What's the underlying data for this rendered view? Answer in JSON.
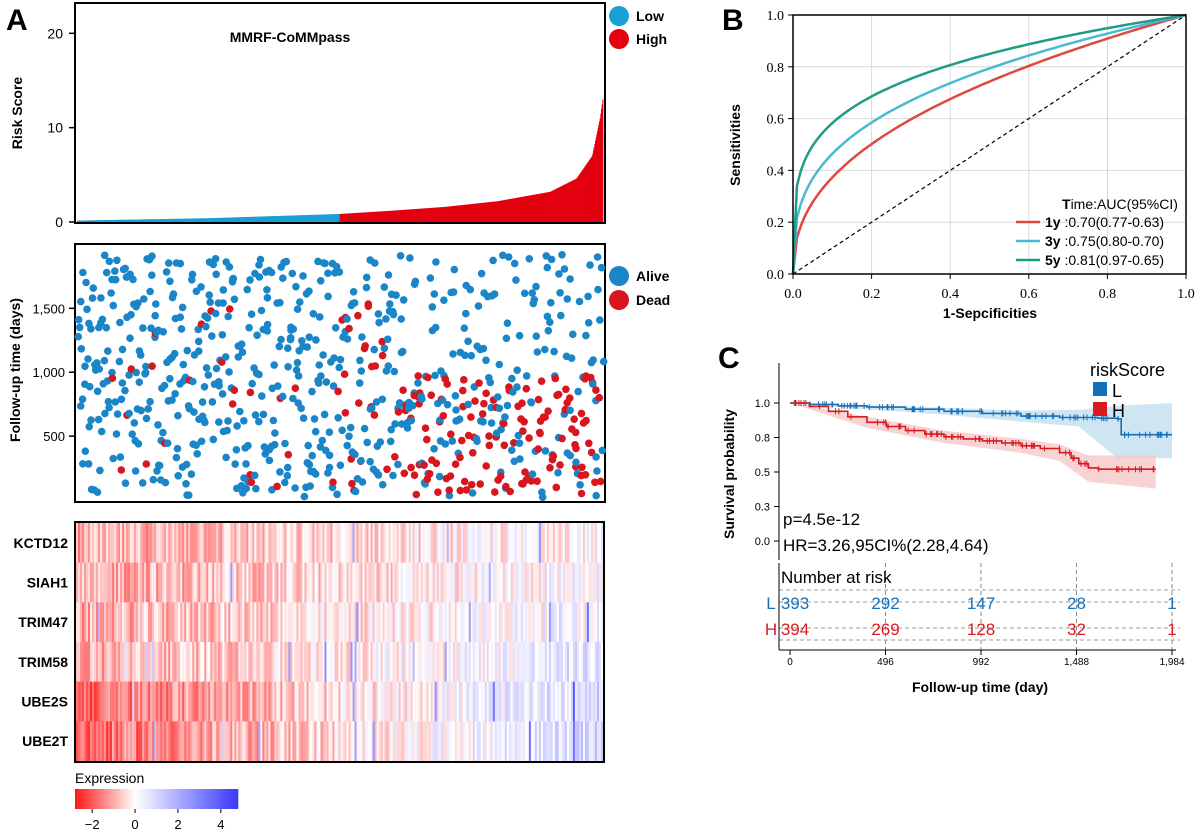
{
  "colors": {
    "low": "#1a9ed6",
    "high": "#e3000f",
    "alive": "#1a86c8",
    "dead": "#d7161e",
    "roc_1y": "#e0483d",
    "roc_3y": "#4ab9d2",
    "roc_5y": "#1f9b86",
    "km_low": "#1670b8",
    "km_high": "#d91a20",
    "km_low_band": "#bfdcef",
    "km_high_band": "#f5c4c4",
    "heat_neg": "#ff1a1a",
    "heat_mid": "#ffffff",
    "heat_pos": "#3a3aff"
  },
  "panel_labels": {
    "a": "A",
    "b": "B",
    "c": "C"
  },
  "chart_data": [
    {
      "id": "risk_score",
      "type": "bar",
      "title": "MMRF-CoMMpass",
      "ylabel": "Risk Score",
      "yticks": [
        0,
        10,
        20
      ],
      "ylim": [
        0,
        23
      ],
      "n": 787,
      "legend": [
        "Low",
        "High"
      ],
      "low_count": 393,
      "high_count": 394,
      "curve": [
        [
          0,
          0.15
        ],
        [
          0.25,
          0.4
        ],
        [
          0.5,
          0.85
        ],
        [
          0.6,
          1.2
        ],
        [
          0.7,
          1.6
        ],
        [
          0.8,
          2.2
        ],
        [
          0.9,
          3.2
        ],
        [
          0.95,
          4.6
        ],
        [
          0.98,
          7.0
        ],
        [
          0.995,
          11
        ],
        [
          1.0,
          13
        ]
      ]
    },
    {
      "id": "survival_scatter",
      "type": "scatter",
      "ylabel": "Follow-up time (days)",
      "yticks": [
        "500",
        "1,000",
        "1,500"
      ],
      "ytick_values": [
        500,
        1000,
        1500
      ],
      "ylim": [
        0,
        1980
      ],
      "legend": [
        "Alive",
        "Dead"
      ],
      "n": 787,
      "dead_fraction_low": 0.06,
      "dead_fraction_high": 0.3
    },
    {
      "id": "expression_heatmap",
      "type": "heatmap",
      "rows": [
        "KCTD12",
        "SIAH1",
        "TRIM47",
        "TRIM58",
        "UBE2S",
        "UBE2T"
      ],
      "row_trend": [
        0.2,
        0.25,
        0.4,
        0.55,
        -1.6,
        -1.9
      ],
      "legend_title": "Expression",
      "legend_ticks": [
        "−2",
        "0",
        "2",
        "4"
      ],
      "legend_tick_values": [
        -2,
        0,
        2,
        4
      ],
      "legend_range": [
        -2.8,
        4.8
      ]
    },
    {
      "id": "roc",
      "type": "line",
      "xlabel": "1-Sepcificities",
      "ylabel": "Sensitivities",
      "xlim": [
        0,
        1
      ],
      "ylim": [
        0,
        1
      ],
      "ticks": [
        "0.0",
        "0.2",
        "0.4",
        "0.6",
        "0.8",
        "1.0"
      ],
      "legend_title_bold": "T",
      "legend_title_rest": "ime:AUC(95%CI)",
      "series": [
        {
          "name": "1y",
          "text": " :0.70(0.77-0.63)",
          "auc": 0.7
        },
        {
          "name": "3y",
          "text": " :0.75(0.80-0.70)",
          "auc": 0.75
        },
        {
          "name": "5y",
          "text": " :0.81(0.97-0.65)",
          "auc": 0.81
        }
      ]
    },
    {
      "id": "kaplan_meier",
      "type": "line",
      "xlabel": "Follow-up time (day)",
      "ylabel": "Survival probability",
      "xticks": [
        "0",
        "496",
        "992",
        "1,488",
        "1,984"
      ],
      "xtick_values": [
        0,
        496,
        992,
        1488,
        1984
      ],
      "yticks": [
        "0.0",
        "0.3",
        "0.5",
        "0.8",
        "1.0"
      ],
      "ytick_values": [
        0.0,
        0.25,
        0.5,
        0.75,
        1.0
      ],
      "legend_title": "riskScore",
      "legend": [
        "L",
        "H"
      ],
      "pvalue": "p=4.5e-12",
      "hr": "HR=3.26,95CI%(2.28,4.64)",
      "series": [
        {
          "name": "L",
          "points": [
            [
              0,
              1.0
            ],
            [
              100,
              0.99
            ],
            [
              250,
              0.98
            ],
            [
              400,
              0.97
            ],
            [
              600,
              0.955
            ],
            [
              800,
              0.94
            ],
            [
              1000,
              0.925
            ],
            [
              1200,
              0.905
            ],
            [
              1400,
              0.895
            ],
            [
              1600,
              0.89
            ],
            [
              1700,
              0.885
            ],
            [
              1720,
              0.77
            ],
            [
              1984,
              0.77
            ]
          ],
          "band_upper": [
            [
              0,
              1.0
            ],
            [
              400,
              0.985
            ],
            [
              800,
              0.965
            ],
            [
              1200,
              0.945
            ],
            [
              1500,
              0.95
            ],
            [
              1700,
              0.98
            ],
            [
              1984,
              1.0
            ]
          ],
          "band_lower": [
            [
              0,
              1.0
            ],
            [
              400,
              0.955
            ],
            [
              800,
              0.915
            ],
            [
              1200,
              0.865
            ],
            [
              1500,
              0.83
            ],
            [
              1700,
              0.6
            ],
            [
              1984,
              0.6
            ]
          ]
        },
        {
          "name": "H",
          "points": [
            [
              0,
              1.0
            ],
            [
              100,
              0.975
            ],
            [
              200,
              0.94
            ],
            [
              300,
              0.9
            ],
            [
              400,
              0.86
            ],
            [
              500,
              0.83
            ],
            [
              600,
              0.8
            ],
            [
              700,
              0.775
            ],
            [
              800,
              0.755
            ],
            [
              900,
              0.74
            ],
            [
              1000,
              0.725
            ],
            [
              1100,
              0.71
            ],
            [
              1200,
              0.69
            ],
            [
              1300,
              0.67
            ],
            [
              1400,
              0.64
            ],
            [
              1460,
              0.6
            ],
            [
              1500,
              0.56
            ],
            [
              1550,
              0.53
            ],
            [
              1600,
              0.52
            ],
            [
              1900,
              0.52
            ]
          ],
          "band_upper": [
            [
              0,
              1.0
            ],
            [
              400,
              0.9
            ],
            [
              800,
              0.8
            ],
            [
              1200,
              0.74
            ],
            [
              1400,
              0.7
            ],
            [
              1550,
              0.62
            ],
            [
              1900,
              0.62
            ]
          ],
          "band_lower": [
            [
              0,
              1.0
            ],
            [
              400,
              0.82
            ],
            [
              800,
              0.71
            ],
            [
              1200,
              0.64
            ],
            [
              1400,
              0.58
            ],
            [
              1550,
              0.43
            ],
            [
              1900,
              0.38
            ]
          ]
        }
      ],
      "risk_table_title": "Number at risk",
      "risk_table": [
        {
          "label": "L",
          "values": [
            "393",
            "292",
            "147",
            "28",
            "1"
          ]
        },
        {
          "label": "H",
          "values": [
            "394",
            "269",
            "128",
            "32",
            "1"
          ]
        }
      ]
    }
  ]
}
